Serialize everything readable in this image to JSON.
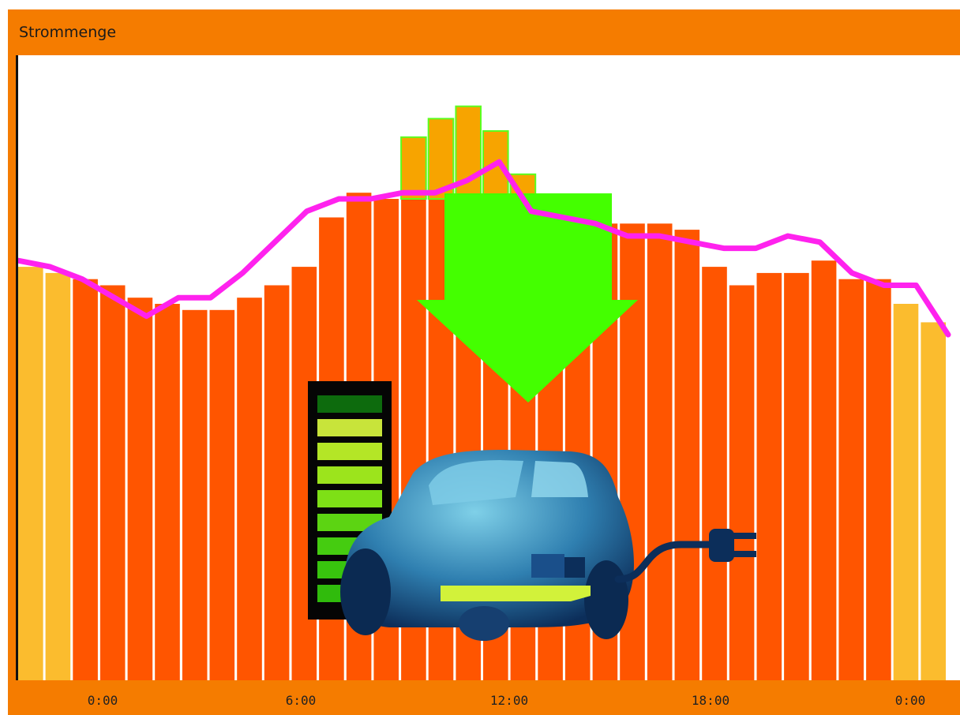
{
  "window": {
    "title": "Strommenge"
  },
  "colors": {
    "frame": "#f57c00",
    "bar_day": "#ff5500",
    "bar_edge": "#fbbc2e",
    "bar_surplus": "#f7a400",
    "surplus_outline": "#5aff1f",
    "arrow": "#44ff00",
    "line": "#ff22ee"
  },
  "chart_data": {
    "type": "bar",
    "title": "Strommenge",
    "x_tick_labels": [
      "0:00",
      "6:00",
      "12:00",
      "18:00",
      "0:00"
    ],
    "ylim": [
      0,
      100
    ],
    "grid": false,
    "legend": "none",
    "series": [
      {
        "values": [
          67,
          66,
          65,
          64,
          62,
          61,
          60,
          60,
          62,
          64,
          67,
          75,
          79,
          78,
          78,
          78,
          78,
          78,
          77,
          74,
          74,
          74,
          74,
          74,
          73,
          67,
          64,
          66,
          66,
          68,
          65,
          65,
          61,
          58
        ],
        "kind": "bars"
      },
      {
        "values": [
          0,
          0,
          0,
          0,
          0,
          0,
          0,
          0,
          0,
          0,
          0,
          0,
          0,
          0,
          10,
          13,
          15,
          11,
          5,
          0,
          0,
          0,
          0,
          0,
          0,
          0,
          0,
          0,
          0,
          0,
          0,
          0,
          0,
          0
        ],
        "kind": "surplus"
      },
      {
        "values": [
          68,
          67,
          65,
          62,
          59,
          62,
          62,
          66,
          71,
          76,
          78,
          78,
          79,
          79,
          81,
          84,
          76,
          75,
          74,
          72,
          72,
          71,
          70,
          70,
          72,
          71,
          66,
          64,
          64,
          56
        ],
        "kind": "line"
      }
    ]
  }
}
